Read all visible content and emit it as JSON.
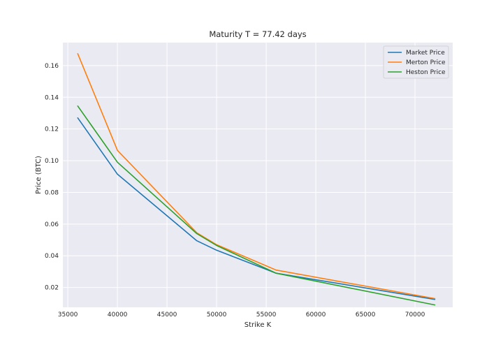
{
  "chart_data": {
    "type": "line",
    "title": "Maturity T = 77.42 days",
    "xlabel": "Strike K",
    "ylabel": "Price (BTC)",
    "xlim": [
      34500,
      73800
    ],
    "ylim": [
      0.0075,
      0.1745
    ],
    "xticks": [
      35000,
      40000,
      45000,
      50000,
      55000,
      60000,
      65000,
      70000
    ],
    "yticks": [
      0.02,
      0.04,
      0.06,
      0.08,
      0.1,
      0.12,
      0.14,
      0.16
    ],
    "ytick_labels": [
      "0.02",
      "0.04",
      "0.06",
      "0.08",
      "0.10",
      "0.12",
      "0.14",
      "0.16"
    ],
    "grid": true,
    "legend_position": "top-right",
    "x": [
      36000,
      40000,
      48000,
      50000,
      56000,
      72000
    ],
    "series": [
      {
        "name": "Market Price",
        "color": "#1f77b4",
        "values": [
          0.127,
          0.0915,
          0.0495,
          0.0435,
          0.029,
          0.0125
        ]
      },
      {
        "name": "Merton Price",
        "color": "#ff7f0e",
        "values": [
          0.1675,
          0.1065,
          0.0545,
          0.047,
          0.031,
          0.013
        ]
      },
      {
        "name": "Heston Price",
        "color": "#2ca02c",
        "values": [
          0.1345,
          0.099,
          0.054,
          0.0465,
          0.029,
          0.009
        ]
      }
    ]
  }
}
